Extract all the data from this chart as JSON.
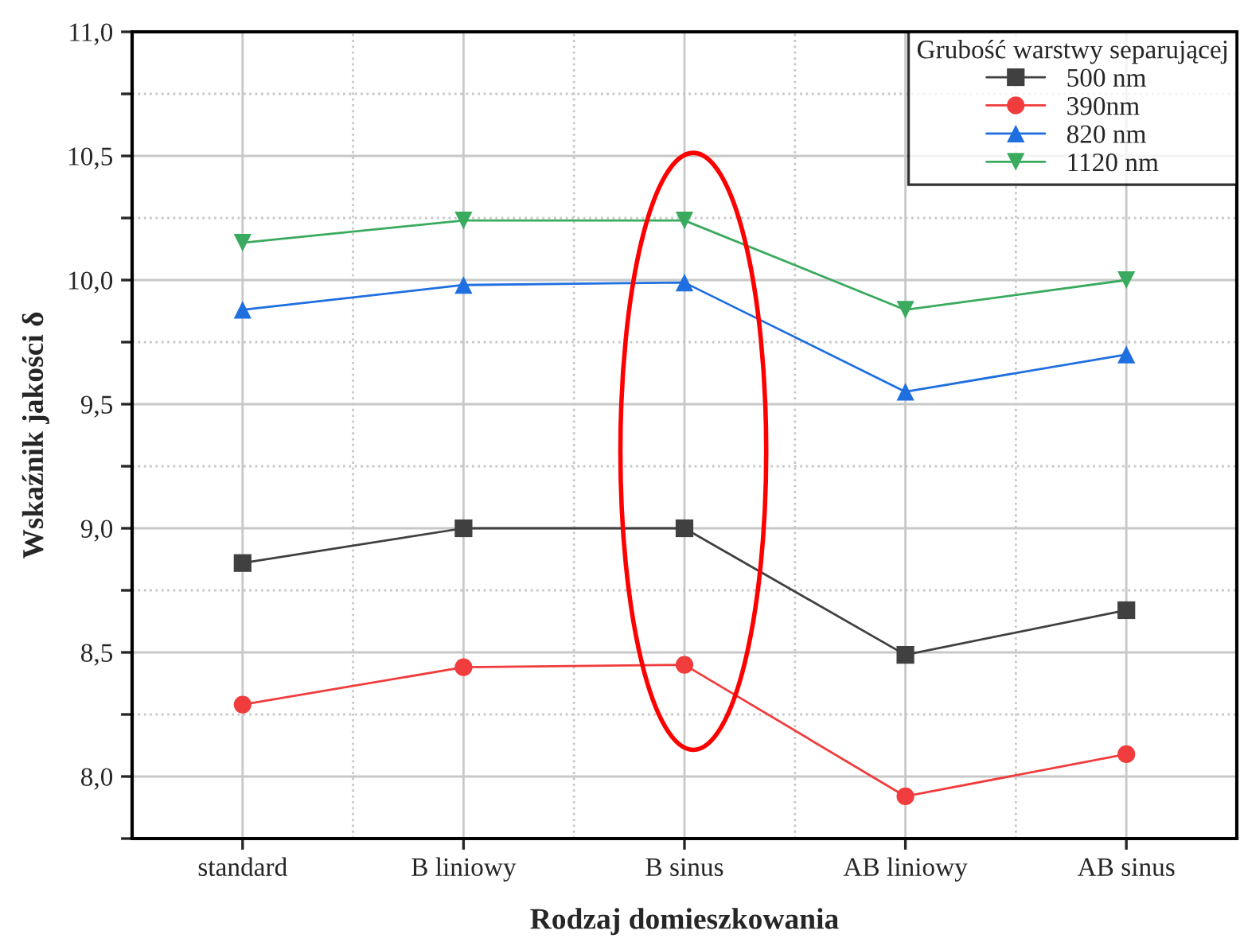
{
  "chart_data": {
    "type": "line",
    "xlabel": "Rodzaj domieszkowania",
    "ylabel": "Wskaźnik jakości δ",
    "legend_title": "Grubość warstwy separującej",
    "categories": [
      "standard",
      "B liniowy",
      "B sinus",
      "AB liniowy",
      "AB sinus"
    ],
    "series": [
      {
        "name": "500 nm",
        "color": "#404040",
        "marker": "square",
        "values": [
          8.86,
          9.0,
          9.0,
          8.49,
          8.67
        ]
      },
      {
        "name": "390nm",
        "color": "#f03c3c",
        "marker": "circle",
        "values": [
          8.29,
          8.44,
          8.45,
          7.92,
          8.09
        ]
      },
      {
        "name": "820 nm",
        "color": "#1f6fe0",
        "marker": "triangle",
        "values": [
          9.88,
          9.98,
          9.99,
          9.55,
          9.7
        ]
      },
      {
        "name": "1120 nm",
        "color": "#3aaa5e",
        "marker": "triangle_down",
        "values": [
          10.15,
          10.24,
          10.24,
          9.88,
          10.0
        ]
      }
    ],
    "ylim": [
      7.75,
      11.0
    ],
    "yticks": [
      {
        "value": 7.75,
        "label": null
      },
      {
        "value": 8.0,
        "label": "8,0"
      },
      {
        "value": 8.25,
        "label": null
      },
      {
        "value": 8.5,
        "label": "8,5"
      },
      {
        "value": 8.75,
        "label": null
      },
      {
        "value": 9.0,
        "label": "9,0"
      },
      {
        "value": 9.25,
        "label": null
      },
      {
        "value": 9.5,
        "label": "9,5"
      },
      {
        "value": 9.75,
        "label": null
      },
      {
        "value": 10.0,
        "label": "10,0"
      },
      {
        "value": 10.25,
        "label": null
      },
      {
        "value": 10.5,
        "label": "10,5"
      },
      {
        "value": 10.75,
        "label": null
      },
      {
        "value": 11.0,
        "label": "11,0"
      }
    ],
    "grid": true,
    "legend": "top right",
    "line_style": "solid"
  }
}
